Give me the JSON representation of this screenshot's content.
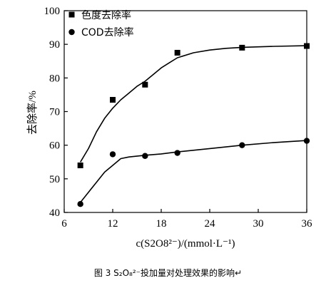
{
  "chart_data": {
    "type": "line",
    "x_tick_labels": [
      "6",
      "12",
      "18",
      "24",
      "30",
      "36"
    ],
    "y_tick_labels": [
      "40",
      "50",
      "60",
      "70",
      "80",
      "90",
      "100"
    ],
    "xlim": [
      6,
      36
    ],
    "ylim": [
      40,
      100
    ],
    "xlabel": "c(S2O8²⁻)/(mmol·L⁻¹)",
    "ylabel": "去除率/%",
    "legend_position": "top-left",
    "series": [
      {
        "name": "色度去除率",
        "marker": "square",
        "x": [
          8,
          12,
          16,
          20,
          28,
          36
        ],
        "y": [
          54,
          73.5,
          78,
          87.5,
          89,
          89.5
        ],
        "curve": [
          [
            8,
            55
          ],
          [
            9,
            59
          ],
          [
            10,
            64
          ],
          [
            11,
            68
          ],
          [
            12,
            71
          ],
          [
            13,
            73.5
          ],
          [
            14,
            75.5
          ],
          [
            15,
            77.5
          ],
          [
            16,
            79
          ],
          [
            17,
            81
          ],
          [
            18,
            83
          ],
          [
            19,
            84.5
          ],
          [
            20,
            86
          ],
          [
            22,
            87.5
          ],
          [
            24,
            88.3
          ],
          [
            26,
            88.8
          ],
          [
            28,
            89.1
          ],
          [
            32,
            89.4
          ],
          [
            36,
            89.6
          ]
        ]
      },
      {
        "name": "COD去除率",
        "marker": "circle",
        "x": [
          8,
          12,
          16,
          20,
          28,
          36
        ],
        "y": [
          42.5,
          57.3,
          56.8,
          57.7,
          60,
          61.3
        ],
        "curve": [
          [
            8,
            43
          ],
          [
            9,
            46
          ],
          [
            10,
            49
          ],
          [
            11,
            52
          ],
          [
            12,
            54
          ],
          [
            13,
            56
          ],
          [
            14,
            56.5
          ],
          [
            16,
            57
          ],
          [
            18,
            57.4
          ],
          [
            20,
            58
          ],
          [
            24,
            59
          ],
          [
            28,
            60
          ],
          [
            32,
            60.8
          ],
          [
            36,
            61.4
          ]
        ]
      }
    ]
  },
  "caption": "图 3 S₂O₈²⁻投加量对处理效果的影响↵"
}
